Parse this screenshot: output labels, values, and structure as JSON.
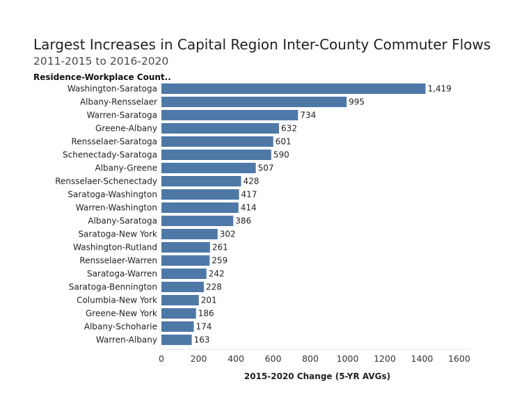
{
  "chart_data": {
    "type": "bar",
    "orientation": "horizontal",
    "title": "Largest Increases in Capital Region Inter-County Commuter Flows",
    "subtitle": "2011-2015 to 2016-2020",
    "row_header": "Residence-Workplace Count..",
    "xlabel": "2015-2020 Change (5-YR AVGs)",
    "xlim": [
      0,
      1600
    ],
    "xticks": [
      0,
      200,
      400,
      600,
      800,
      1000,
      1200,
      1400,
      1600
    ],
    "bar_color": "#4e79a7",
    "categories": [
      "Washington-Saratoga",
      "Albany-Rensselaer",
      "Warren-Saratoga",
      "Greene-Albany",
      "Rensselaer-Saratoga",
      "Schenectady-Saratoga",
      "Albany-Greene",
      "Rensselaer-Schenectady",
      "Saratoga-Washington",
      "Warren-Washington",
      "Albany-Saratoga",
      "Saratoga-New York",
      "Washington-Rutland",
      "Rensselaer-Warren",
      "Saratoga-Warren",
      "Saratoga-Bennington",
      "Columbia-New York",
      "Greene-New York",
      "Albany-Schoharie",
      "Warren-Albany"
    ],
    "values": [
      1419,
      995,
      734,
      632,
      601,
      590,
      507,
      428,
      417,
      414,
      386,
      302,
      261,
      259,
      242,
      228,
      201,
      186,
      174,
      163
    ],
    "value_labels": [
      "1,419",
      "995",
      "734",
      "632",
      "601",
      "590",
      "507",
      "428",
      "417",
      "414",
      "386",
      "302",
      "261",
      "259",
      "242",
      "228",
      "201",
      "186",
      "174",
      "163"
    ]
  }
}
